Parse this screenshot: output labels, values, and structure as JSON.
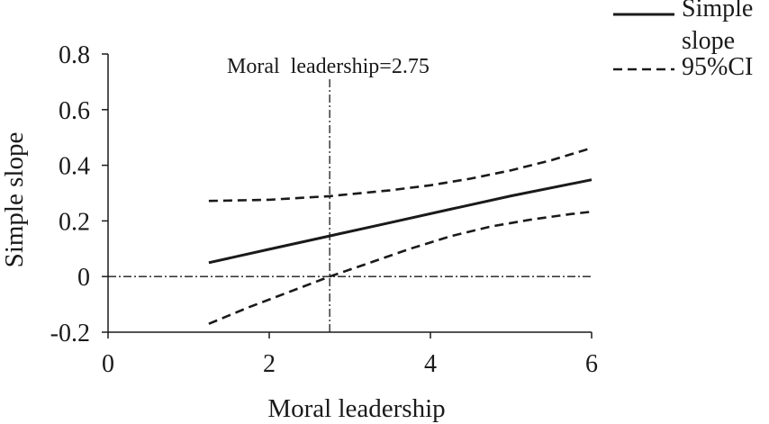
{
  "chart_data": {
    "type": "line",
    "xlabel": "Moral leadership",
    "ylabel": "Simple slope",
    "xlim": [
      0,
      6
    ],
    "ylim": [
      -0.2,
      0.8
    ],
    "x_ticks": [
      0,
      2,
      4,
      6
    ],
    "y_ticks": [
      -0.2,
      0,
      0.2,
      0.4,
      0.6,
      0.8
    ],
    "x_tick_labels": [
      "0",
      "2",
      "4",
      "6"
    ],
    "y_tick_labels": [
      "-0.2",
      "0",
      "0.2",
      "0.4",
      "0.6",
      "0.8"
    ],
    "grid": false,
    "legend_position": "top-right",
    "legend": [
      {
        "label_lines": [
          "Simple",
          "slope"
        ],
        "style": "solid"
      },
      {
        "label_lines": [
          "95%CI"
        ],
        "style": "dashed"
      }
    ],
    "series": [
      {
        "name": "Simple slope",
        "style": "solid",
        "x": [
          1.25,
          2.0,
          2.75,
          3.5,
          4.25,
          5.0,
          6.0
        ],
        "y": [
          0.05,
          0.098,
          0.146,
          0.194,
          0.242,
          0.29,
          0.348
        ]
      },
      {
        "name": "95%CI",
        "style": "dashed",
        "x": [
          1.25,
          2.0,
          2.75,
          3.5,
          4.0,
          4.5,
          5.0,
          5.5,
          6.0
        ],
        "y": [
          0.272,
          0.276,
          0.289,
          0.31,
          0.328,
          0.352,
          0.382,
          0.418,
          0.462
        ]
      },
      {
        "name": "95%CI",
        "style": "dashed",
        "x": [
          1.25,
          1.75,
          2.25,
          2.75,
          3.25,
          3.75,
          4.25,
          4.75,
          5.25,
          5.75,
          6.0
        ],
        "y": [
          -0.17,
          -0.11,
          -0.055,
          0.0,
          0.05,
          0.1,
          0.145,
          0.18,
          0.205,
          0.225,
          0.233
        ]
      }
    ],
    "reference_lines": [
      {
        "orientation": "vertical",
        "value": 2.75,
        "style": "dash-dot"
      },
      {
        "orientation": "horizontal",
        "value": 0,
        "style": "dash-dot"
      }
    ],
    "annotations": [
      {
        "text": "Moral  leadership=2.75"
      }
    ]
  }
}
